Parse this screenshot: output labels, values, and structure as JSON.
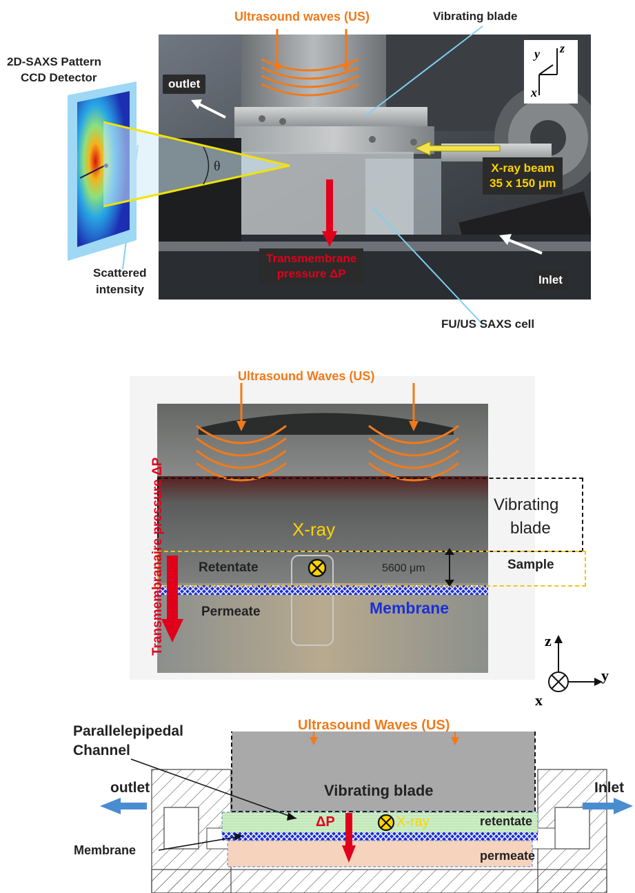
{
  "panel1": {
    "us_label": "Ultrasound waves (US)",
    "vibrating_blade": "Vibrating blade",
    "detector_l1": "2D-SAXS Pattern",
    "detector_l2": "CCD Detector",
    "outlet": "outlet",
    "theta": "θ",
    "xray_l1": "X-ray beam",
    "xray_l2": "35 x 150 μm",
    "tmp_l1": "Transmembrane",
    "tmp_l2": "pressure ΔP",
    "inlet": "Inlet",
    "scattered_l1": "Scattered",
    "scattered_l2": "intensity",
    "cell": "FU/US SAXS cell",
    "axes": {
      "y": "y",
      "z": "z",
      "x": "x"
    }
  },
  "panel2": {
    "us_label": "Ultrasound Waves (US)",
    "side_label": "Transmembranaire pressure ΔP",
    "vibrating_l1": "Vibrating",
    "vibrating_l2": "blade",
    "xray": "X-ray",
    "retentate": "Retentate",
    "dimension": "5600 μm",
    "sample": "Sample",
    "permeate": "Permeate",
    "membrane": "Membrane",
    "axes": {
      "z": "z",
      "y": "y",
      "x": "x"
    }
  },
  "panel3": {
    "channel_l1": "Parallelepipedal",
    "channel_l2": "Channel",
    "us_label": "Ultrasound Waves (US)",
    "vibrating_blade": "Vibrating blade",
    "outlet": "outlet",
    "inlet": "Inlet",
    "dp": "ΔP",
    "xray": "X-ray",
    "retentate": "retentate",
    "membrane": "Membrane",
    "permeate": "permeate"
  },
  "colors": {
    "orange": "#f07a1a",
    "red": "#e0001b",
    "yellow": "#ffd400",
    "blue": "#1a2fd6",
    "green_fill": "#cfeec7",
    "peach_fill": "#f6d3bd",
    "blade_gray": "#a9a9a9"
  }
}
